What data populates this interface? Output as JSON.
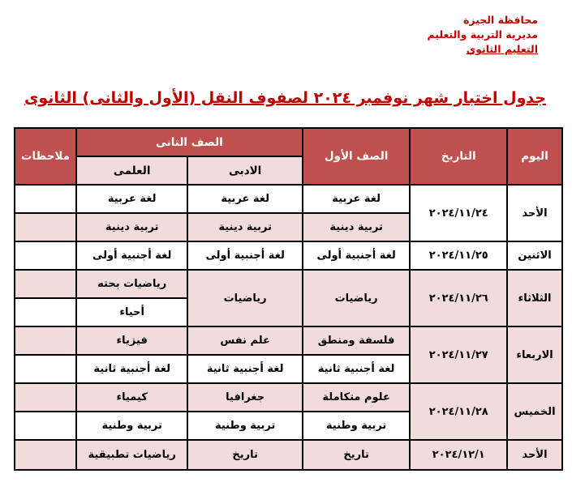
{
  "org": {
    "line1": "محافظة الجيزة",
    "line2": "مديرية التربية والتعليم",
    "line3": "التعليم الثانوي"
  },
  "title": "جدول اختبار شهر نوفمبر ٢٠٢٤ لصفوف النقل (الأول والثانى) الثانوى",
  "colors": {
    "header": "#c0504d",
    "shade": "#f2dcdb",
    "title": "#c00000"
  },
  "headers": {
    "day": "اليوم",
    "date": "التاريخ",
    "first": "الصف الأول",
    "second": "الصف الثانى",
    "literary": "الادبى",
    "science": "العلمى",
    "notes": "ملاحظات"
  },
  "rows": [
    {
      "day": "الأحد",
      "date": "٢٠٢٤/١١/٢٤",
      "first": [
        "لغة عربية",
        "تربية دينية"
      ],
      "lit": [
        "لغة عربية",
        "تربية دينية"
      ],
      "sci": [
        "لغة عربية",
        "تربية دينية"
      ]
    },
    {
      "day": "الاثنين",
      "date": "٢٠٢٤/١١/٢٥",
      "first": [
        "لغة أجنبية أولى"
      ],
      "lit": [
        "لغة أجنبية أولى"
      ],
      "sci": [
        "لغة أجنبية أولى"
      ]
    },
    {
      "day": "الثلاثاء",
      "date": "٢٠٢٤/١١/٢٦",
      "first": [
        "رياضيات"
      ],
      "lit": [
        "رياضيات"
      ],
      "sci": [
        "رياضيات بحته",
        "أحياء"
      ]
    },
    {
      "day": "الاربعاء",
      "date": "٢٠٢٤/١١/٢٧",
      "first": [
        "فلسفة ومنطق",
        "لغة أجنبية ثانية"
      ],
      "lit": [
        "علم نفس",
        "لغة أجنبية ثانية"
      ],
      "sci": [
        "فيزياء",
        "لغة أجنبية ثانية"
      ]
    },
    {
      "day": "الخميس",
      "date": "٢٠٢٤/١١/٢٨",
      "first": [
        "علوم متكاملة",
        "تربية وطنية"
      ],
      "lit": [
        "جغرافيا",
        "تربية وطنية"
      ],
      "sci": [
        "كيمياء",
        "تربية وطنية"
      ]
    },
    {
      "day": "الأحد",
      "date": "٢٠٢٤/١٢/١",
      "first": [
        "تاريخ"
      ],
      "lit": [
        "تاريخ"
      ],
      "sci": [
        "رياضيات تطبيقية"
      ]
    }
  ]
}
